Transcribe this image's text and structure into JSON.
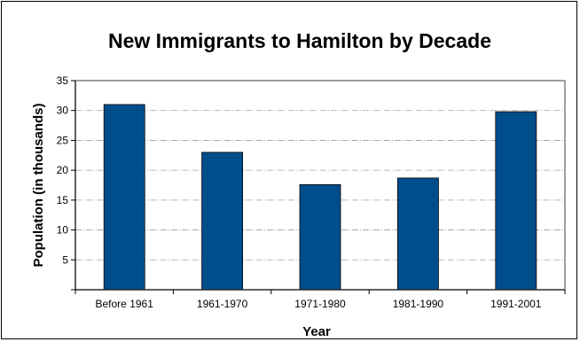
{
  "chart_data": {
    "type": "bar",
    "title": "New Immigrants to Hamilton by Decade",
    "xlabel": "Year",
    "ylabel": "Population (in thousands)",
    "categories": [
      "Before 1961",
      "1961-1970",
      "1971-1980",
      "1981-1990",
      "1991-2001"
    ],
    "values": [
      31,
      23,
      17.6,
      18.7,
      29.8
    ],
    "ylim": [
      0,
      35
    ],
    "yticks": [
      5,
      10,
      15,
      20,
      25,
      30,
      35
    ],
    "grid": true,
    "legend": "none",
    "colors": {
      "bar": "#004d8c",
      "bar_edge": "#000000",
      "plot_border": "#808080",
      "gridline": "#a0a0a0"
    }
  }
}
